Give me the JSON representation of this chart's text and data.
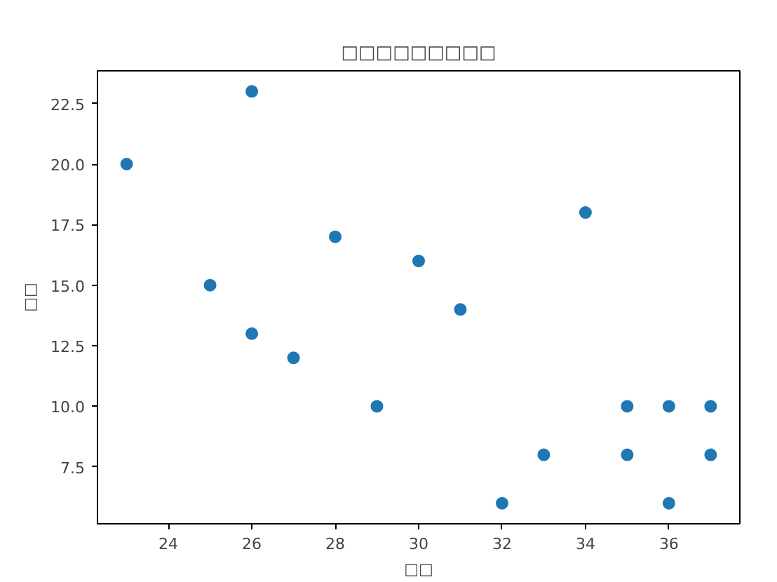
{
  "chart_data": {
    "type": "scatter",
    "title": "□□□□□□□□□",
    "xlabel": "□□",
    "ylabel": "□□",
    "x": [
      23,
      25,
      26,
      26,
      27,
      28,
      29,
      30,
      31,
      32,
      33,
      34,
      35,
      35,
      36,
      36,
      37,
      37
    ],
    "series": [
      {
        "color": "#1f77b4",
        "values": [
          20,
          15,
          23,
          13,
          12,
          17,
          10,
          16,
          14,
          6,
          8,
          18,
          10,
          8,
          10,
          6,
          10,
          8
        ]
      }
    ],
    "xlim": [
      22.3,
      37.7
    ],
    "ylim": [
      5.15,
      23.85
    ],
    "xticks": [
      24,
      26,
      28,
      30,
      32,
      34,
      36
    ],
    "yticks": [
      {
        "value": 7.5,
        "label": "7.5"
      },
      {
        "value": 10,
        "label": "10.0"
      },
      {
        "value": 12.5,
        "label": "12.5"
      },
      {
        "value": 15,
        "label": "15.0"
      },
      {
        "value": 17.5,
        "label": "17.5"
      },
      {
        "value": 20,
        "label": "20.0"
      },
      {
        "value": 22.5,
        "label": "22.5"
      }
    ],
    "grid": false,
    "marker": "circle"
  }
}
